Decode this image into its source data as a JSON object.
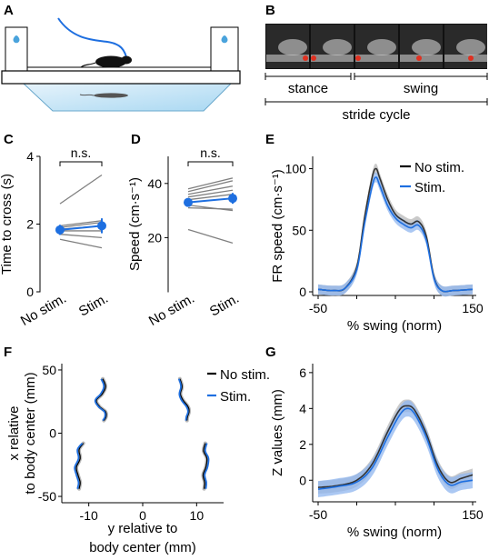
{
  "panels": {
    "A": "A",
    "B": "B",
    "C": "C",
    "D": "D",
    "E": "E",
    "F": "F",
    "G": "G"
  },
  "colors": {
    "stim": "#1e6fe0",
    "nostim": "#000000",
    "gray": "#808080",
    "stim_light": "#8fb6ef",
    "gray_light": "#b8b8b8"
  },
  "panelB": {
    "stance_label": "stance",
    "swing_label": "swing",
    "stride_label": "stride cycle"
  },
  "chart_data": [
    {
      "id": "C",
      "type": "line",
      "ylabel": "Time to cross (s)",
      "categories": [
        "No stim.",
        "Stim."
      ],
      "ylim": [
        0,
        4
      ],
      "yticks": [
        "0",
        "2",
        "4"
      ],
      "significance": "n.s.",
      "individual": [
        [
          2.6,
          3.45
        ],
        [
          1.95,
          2.1
        ],
        [
          1.9,
          2.05
        ],
        [
          1.85,
          1.95
        ],
        [
          1.8,
          1.8
        ],
        [
          1.7,
          1.6
        ],
        [
          1.55,
          1.3
        ]
      ],
      "mean": [
        1.83,
        1.95
      ],
      "error": [
        0.15,
        0.22
      ]
    },
    {
      "id": "D",
      "type": "line",
      "ylabel": "Speed (cm·s⁻¹)",
      "categories": [
        "No stim.",
        "Stim."
      ],
      "ylim": [
        0,
        50
      ],
      "yticks": [
        "20",
        "40"
      ],
      "significance": "n.s.",
      "individual": [
        [
          38,
          42
        ],
        [
          37,
          41
        ],
        [
          36,
          39
        ],
        [
          35,
          37.5
        ],
        [
          34,
          36
        ],
        [
          32,
          30
        ],
        [
          31,
          30.5
        ],
        [
          23,
          18
        ]
      ],
      "mean": [
        33,
        34.5
      ],
      "error": [
        1.2,
        2.0
      ]
    },
    {
      "id": "E",
      "type": "line",
      "ylabel": "FR speed (cm·s⁻¹)",
      "xlabel": "% swing (norm)",
      "xlim": [
        -50,
        150
      ],
      "ylim": [
        0,
        110
      ],
      "xticks": [
        "-50",
        "0",
        "50",
        "100",
        "150"
      ],
      "yticks": [
        "0",
        "50",
        "100"
      ],
      "legend": "top-right",
      "series": [
        {
          "name": "No stim.",
          "x": [
            -50,
            -30,
            -15,
            0,
            10,
            20,
            25,
            30,
            40,
            50,
            60,
            70,
            80,
            90,
            100,
            110,
            125,
            150
          ],
          "y": [
            2,
            1,
            3,
            20,
            60,
            93,
            100,
            92,
            75,
            63,
            58,
            55,
            57,
            45,
            12,
            1,
            1,
            2
          ]
        },
        {
          "name": "Stim.",
          "x": [
            -50,
            -30,
            -15,
            0,
            10,
            20,
            25,
            30,
            40,
            50,
            60,
            70,
            80,
            90,
            100,
            110,
            125,
            150
          ],
          "y": [
            2,
            1,
            3,
            18,
            55,
            86,
            93,
            86,
            70,
            60,
            55,
            52,
            54,
            42,
            11,
            1,
            1,
            2
          ]
        }
      ]
    },
    {
      "id": "F",
      "type": "line",
      "xlabel": "y relative to body center (mm)",
      "ylabel": "x relative to body center (mm)",
      "xlim": [
        -15,
        15
      ],
      "ylim": [
        -55,
        55
      ],
      "xticks": [
        "-10",
        "0",
        "10"
      ],
      "yticks": [
        "50",
        "0",
        "-50"
      ],
      "legend": "top-right",
      "series": [
        {
          "name": "No stim.",
          "traces": [
            [
              [
                -7.4,
                43
              ],
              [
                -6.9,
                37
              ],
              [
                -7.5,
                31
              ],
              [
                -8.6,
                26
              ],
              [
                -8.0,
                21
              ],
              [
                -6.9,
                17
              ],
              [
                -6.8,
                13
              ],
              [
                -7.2,
                10
              ]
            ],
            [
              [
                6.9,
                43
              ],
              [
                7.3,
                37
              ],
              [
                7.0,
                31
              ],
              [
                7.5,
                26
              ],
              [
                8.4,
                21
              ],
              [
                8.6,
                17
              ],
              [
                8.3,
                13
              ],
              [
                8.2,
                10
              ]
            ],
            [
              [
                -11.0,
                -8
              ],
              [
                -11.8,
                -13
              ],
              [
                -11.6,
                -20
              ],
              [
                -12.3,
                -27
              ],
              [
                -12.0,
                -33
              ],
              [
                -11.6,
                -39
              ],
              [
                -11.8,
                -44
              ]
            ],
            [
              [
                11.6,
                -8
              ],
              [
                11.3,
                -14
              ],
              [
                11.9,
                -20
              ],
              [
                11.7,
                -27
              ],
              [
                11.2,
                -33
              ],
              [
                11.5,
                -39
              ],
              [
                11.4,
                -44
              ]
            ]
          ]
        },
        {
          "name": "Stim.",
          "traces": [
            [
              [
                -7.7,
                43
              ],
              [
                -7.2,
                37
              ],
              [
                -7.8,
                31
              ],
              [
                -8.8,
                26
              ],
              [
                -8.2,
                21
              ],
              [
                -7.1,
                17
              ],
              [
                -7.0,
                13
              ],
              [
                -7.4,
                10
              ]
            ],
            [
              [
                6.7,
                43
              ],
              [
                7.1,
                37
              ],
              [
                6.8,
                31
              ],
              [
                7.2,
                26
              ],
              [
                8.1,
                21
              ],
              [
                8.4,
                17
              ],
              [
                8.1,
                13
              ],
              [
                8.0,
                10
              ]
            ],
            [
              [
                -11.2,
                -8
              ],
              [
                -12.1,
                -13
              ],
              [
                -11.9,
                -20
              ],
              [
                -12.6,
                -27
              ],
              [
                -12.3,
                -33
              ],
              [
                -11.9,
                -39
              ],
              [
                -12.1,
                -44
              ]
            ],
            [
              [
                11.9,
                -8
              ],
              [
                11.6,
                -14
              ],
              [
                12.2,
                -20
              ],
              [
                12.0,
                -27
              ],
              [
                11.5,
                -33
              ],
              [
                11.8,
                -39
              ],
              [
                11.7,
                -44
              ]
            ]
          ]
        }
      ]
    },
    {
      "id": "G",
      "type": "line",
      "ylabel": "Z values (mm)",
      "xlabel": "% swing (norm)",
      "xlim": [
        -50,
        150
      ],
      "ylim": [
        -1,
        6.5
      ],
      "xticks": [
        "-50",
        "0",
        "50",
        "100",
        "150"
      ],
      "yticks": [
        "0",
        "2",
        "4",
        "6"
      ],
      "series": [
        {
          "name": "No stim.",
          "x": [
            -50,
            -25,
            0,
            20,
            40,
            55,
            65,
            75,
            90,
            105,
            120,
            135,
            150
          ],
          "y": [
            -0.4,
            -0.3,
            0.0,
            0.9,
            2.7,
            3.9,
            4.15,
            3.9,
            2.6,
            0.8,
            -0.1,
            0.1,
            0.3
          ]
        },
        {
          "name": "Stim.",
          "x": [
            -50,
            -25,
            0,
            20,
            40,
            55,
            65,
            75,
            90,
            105,
            120,
            135,
            150
          ],
          "y": [
            -0.5,
            -0.35,
            -0.1,
            0.7,
            2.4,
            3.6,
            4.0,
            3.7,
            2.4,
            0.6,
            -0.25,
            -0.1,
            0.0
          ]
        }
      ]
    }
  ]
}
